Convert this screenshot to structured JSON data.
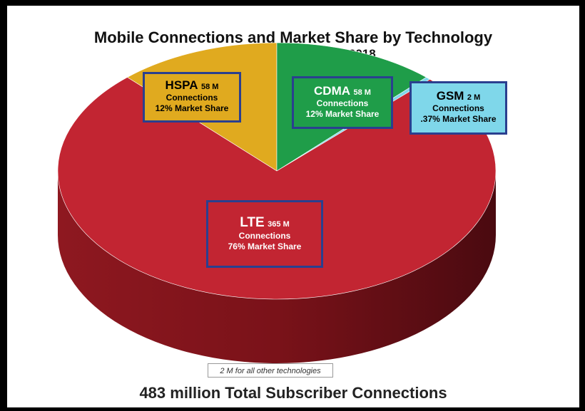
{
  "chart_data": {
    "type": "pie",
    "title": "Mobile Connections and Market Share by Technology",
    "subtitle": "US and Canada  |  March 2018",
    "slices": [
      {
        "name": "LTE",
        "connections": "365 M",
        "share_label": "76% Market Share",
        "value": 76,
        "color": "#c22532"
      },
      {
        "name": "HSPA",
        "connections": "58 M",
        "share_label": "12% Market Share",
        "value": 12,
        "color": "#e0aa1f"
      },
      {
        "name": "CDMA",
        "connections": "58 M",
        "share_label": "12% Market Share",
        "value": 12,
        "color": "#1f9d49"
      },
      {
        "name": "GSM",
        "connections": "2 M",
        "share_label": ".37% Market Share",
        "value": 0.37,
        "color": "#7fd7ea"
      }
    ],
    "connections_word": "Connections",
    "note": "2 M for all other technologies",
    "total": "483 million Total Subscriber Connections"
  }
}
